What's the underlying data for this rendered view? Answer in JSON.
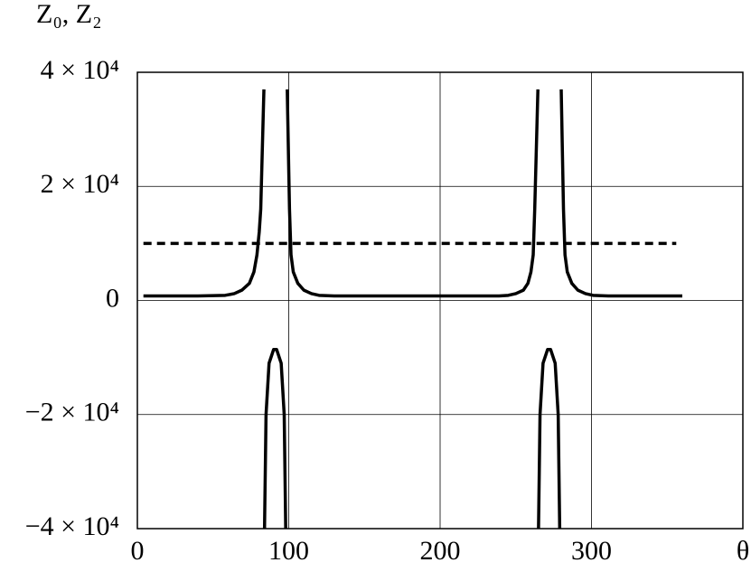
{
  "chart_data": {
    "type": "line",
    "ylabel": "Z₀, Z₂",
    "xlabel": "θ",
    "xlim": [
      0,
      400
    ],
    "ylim": [
      -40000,
      40000
    ],
    "xticks": [
      0,
      100,
      200,
      300
    ],
    "yticks": [
      {
        "value": -40000,
        "label": "−4 × 10⁴"
      },
      {
        "value": -20000,
        "label": "−2 × 10⁴"
      },
      0,
      {
        "value": 20000,
        "label": "2 × 10⁴"
      },
      {
        "value": 40000,
        "label": "4 × 10⁴"
      }
    ],
    "grid": true,
    "series": [
      {
        "color": "#000000",
        "dash": false,
        "x": [
          4,
          40,
          58,
          64,
          69,
          74,
          77,
          79,
          80.5,
          81.5,
          83.6,
          83.8,
          84,
          85,
          87,
          90,
          92,
          95,
          97,
          98,
          98.6,
          99,
          100.5,
          101.5,
          103,
          106,
          110,
          115,
          120,
          130,
          239,
          245,
          250,
          255,
          258,
          260,
          261.5,
          262.5,
          264.6,
          264.8,
          265,
          266,
          268,
          271,
          273,
          276,
          278,
          279,
          279.6,
          280,
          281.5,
          282.5,
          284,
          287,
          291,
          296,
          301,
          311,
          360
        ],
        "values": [
          800,
          800,
          900,
          1200,
          1800,
          3000,
          5000,
          8000,
          12000,
          16000,
          37000,
          null,
          -40000,
          -20000,
          -11000,
          -8600,
          -8600,
          -11000,
          -20000,
          -40000,
          null,
          37000,
          16000,
          8000,
          5000,
          3000,
          1800,
          1200,
          900,
          800,
          800,
          900,
          1200,
          1800,
          3000,
          5000,
          8000,
          16000,
          37000,
          null,
          -40000,
          -20000,
          -11000,
          -8600,
          -8600,
          -11000,
          -20000,
          -40000,
          null,
          37000,
          16000,
          8000,
          5000,
          3000,
          1800,
          1200,
          900,
          800,
          800
        ]
      },
      {
        "color": "#000000",
        "dash": true,
        "x": [
          4,
          356
        ],
        "values": [
          10000,
          10000
        ]
      }
    ]
  }
}
